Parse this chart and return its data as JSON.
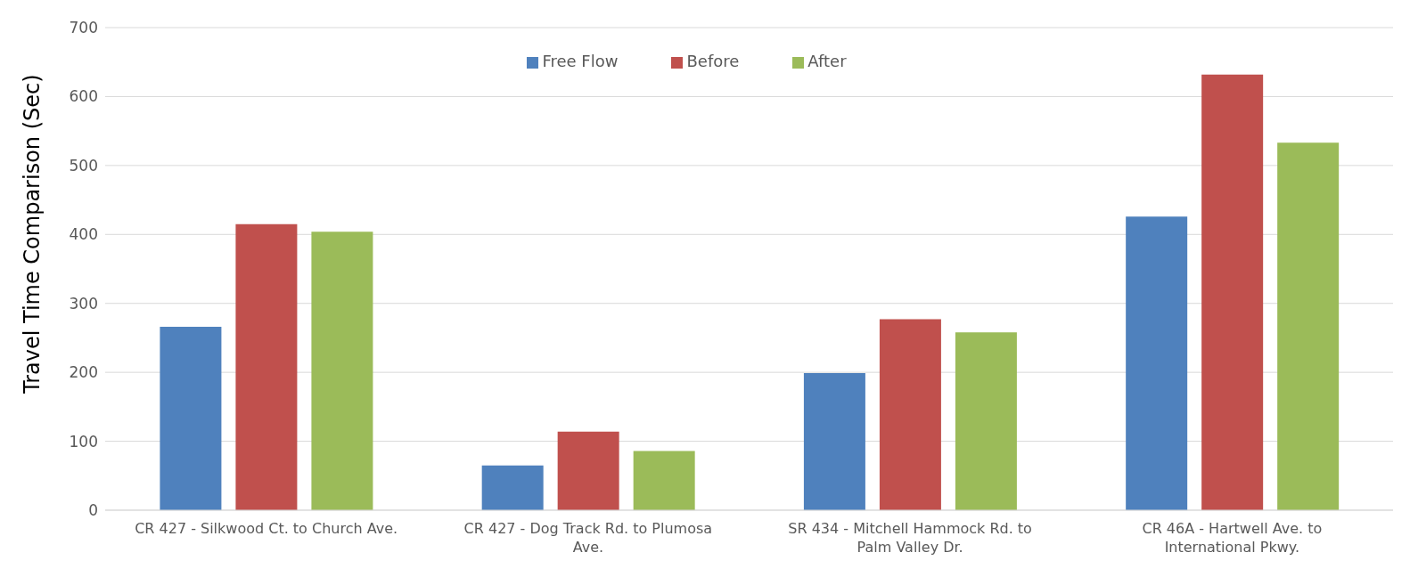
{
  "chart_data": {
    "type": "bar",
    "ylabel": "Travel Time Comparison (Sec)",
    "categories": [
      "CR 427 - Silkwood Ct. to Church Ave.",
      "CR 427 - Dog Track Rd. to Plumosa Ave.",
      "SR 434 - Mitchell Hammock Rd. to Palm Valley Dr.",
      "CR 46A - Hartwell Ave. to International Pkwy."
    ],
    "series": [
      {
        "name": "Free Flow",
        "color": "#4f81bd",
        "values": [
          266,
          65,
          199,
          426
        ]
      },
      {
        "name": "Before",
        "color": "#c0504d",
        "values": [
          415,
          114,
          277,
          632
        ]
      },
      {
        "name": "After",
        "color": "#9bbb59",
        "values": [
          404,
          86,
          258,
          533
        ]
      }
    ],
    "ylim": [
      0,
      700
    ],
    "yticks": [
      0,
      100,
      200,
      300,
      400,
      500,
      600,
      700
    ],
    "grid": "y",
    "legend": "top"
  }
}
